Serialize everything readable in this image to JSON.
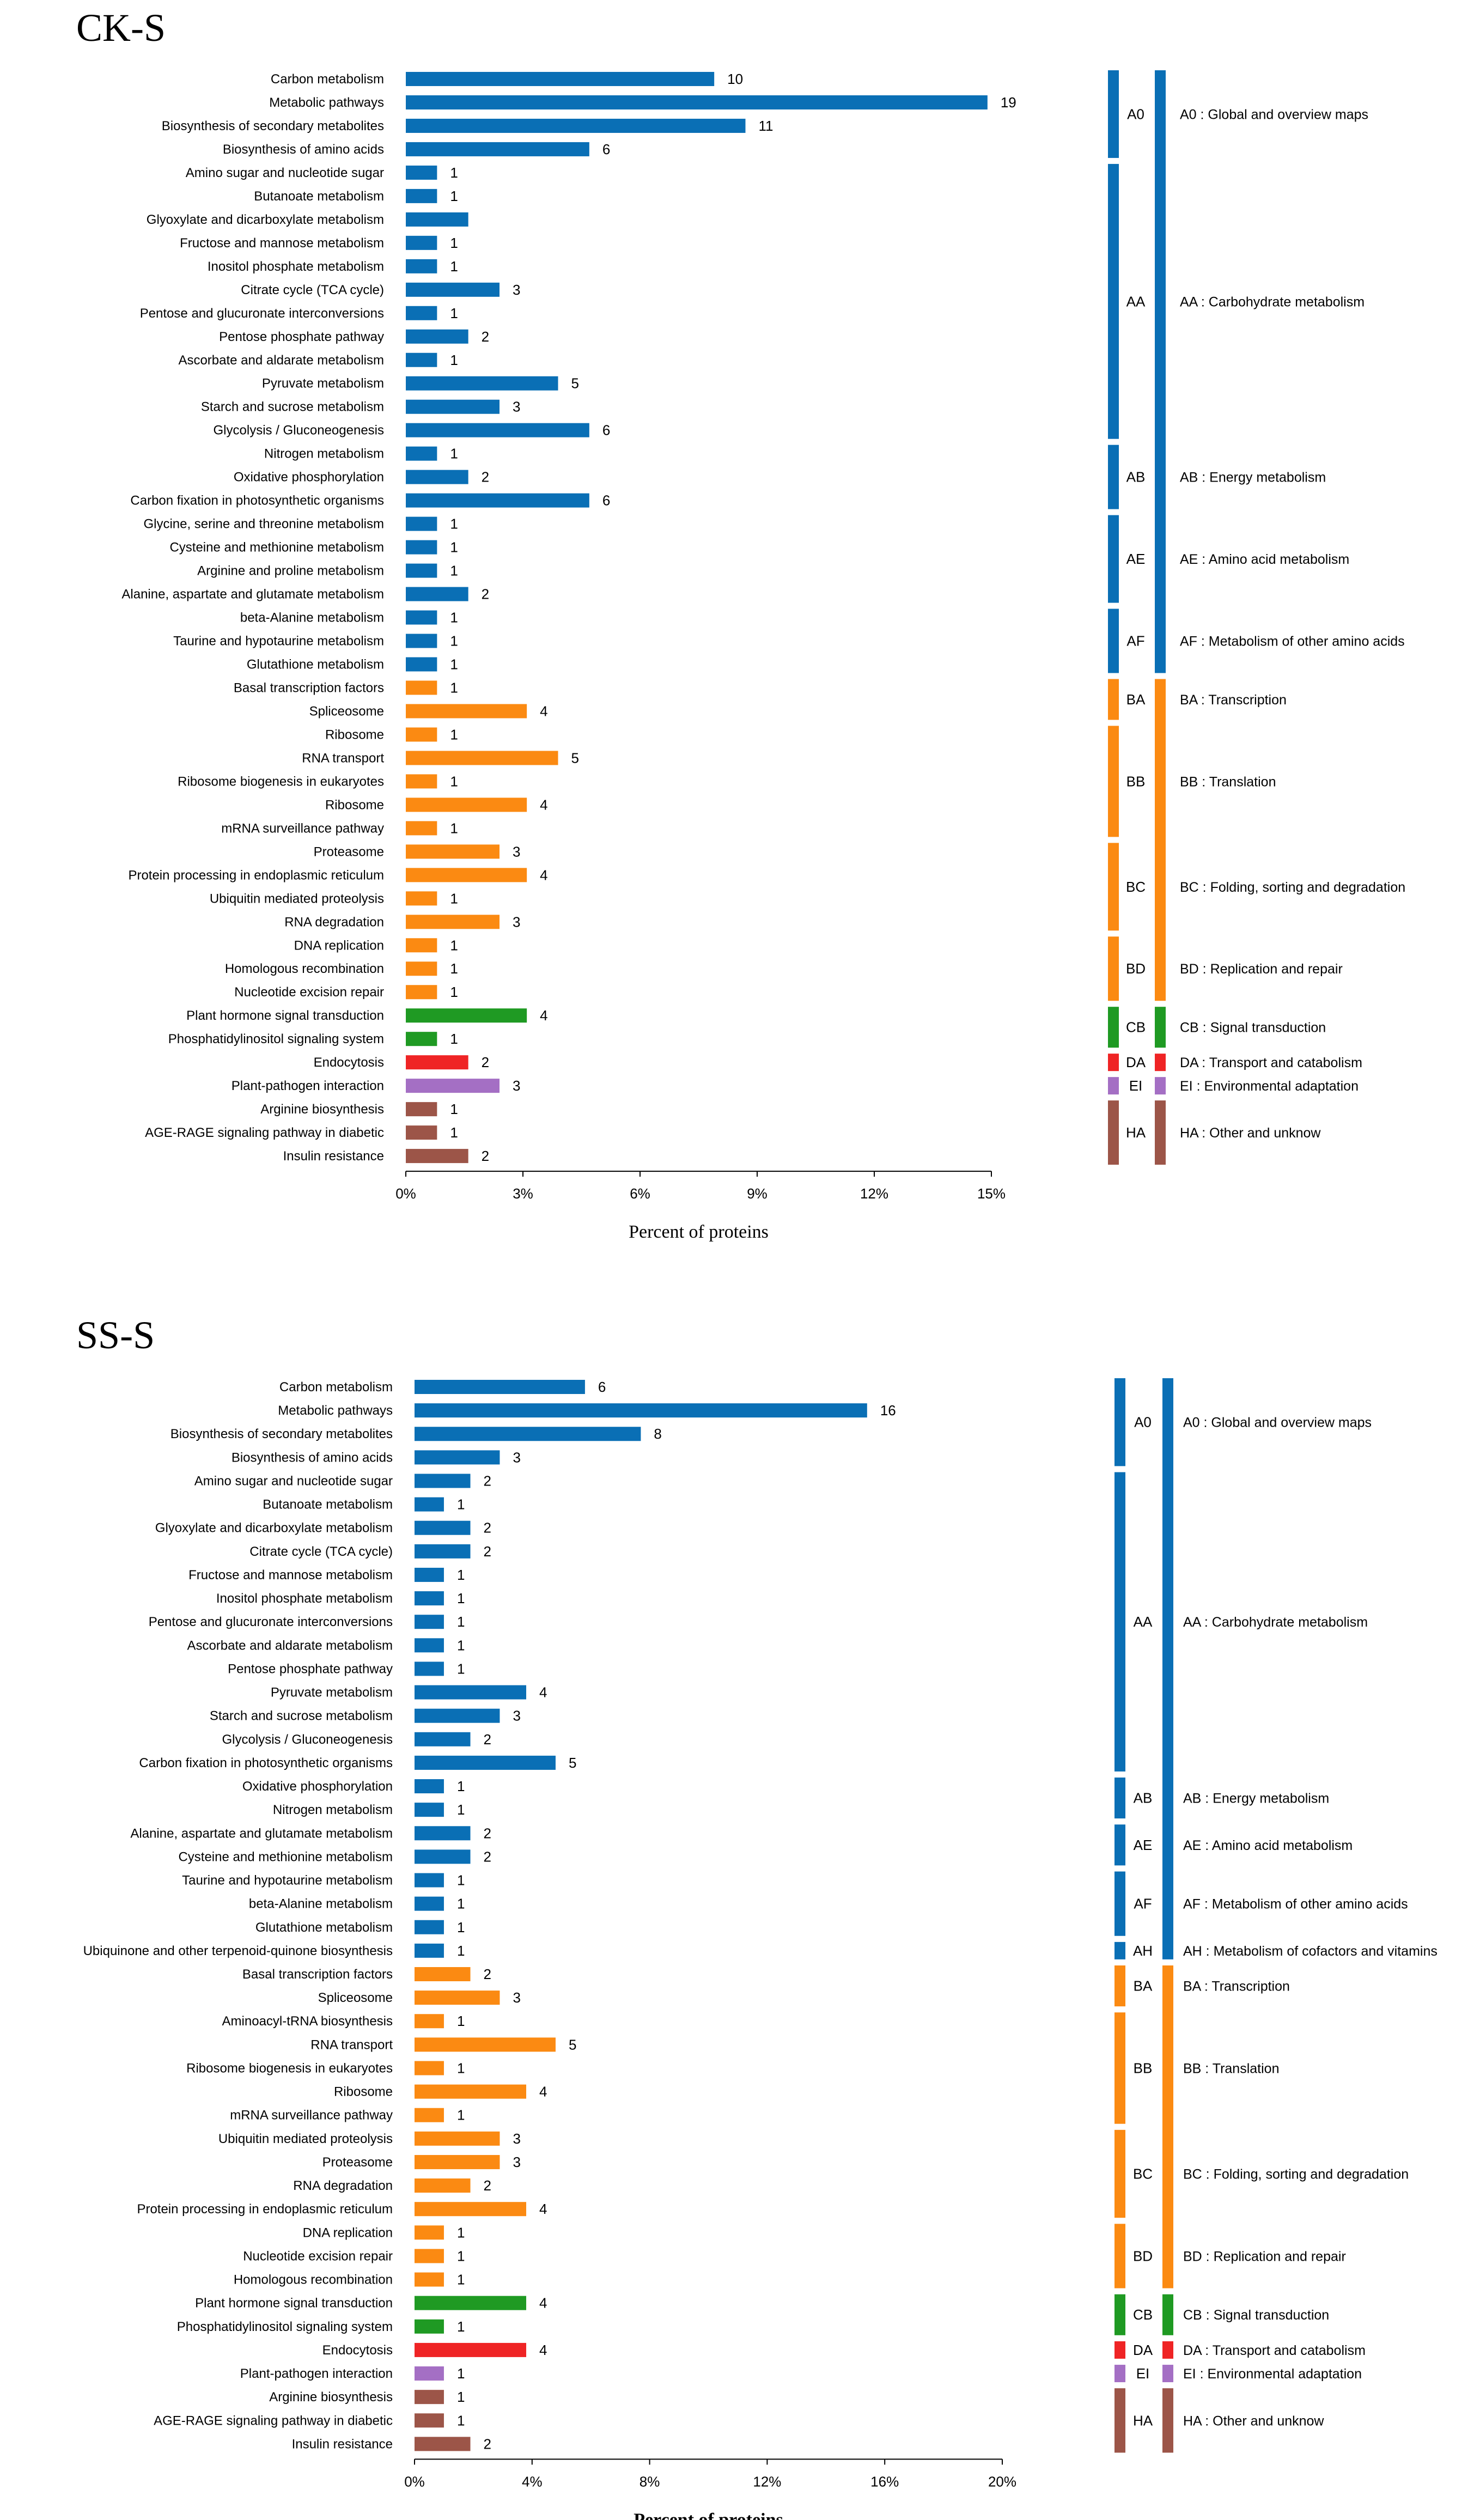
{
  "colors": {
    "blue": "#0a6fb5",
    "orange": "#fb8a12",
    "green": "#1f9a23",
    "red": "#ef2425",
    "purple": "#a46fc4",
    "brown": "#9c5548"
  },
  "chart_data": [
    {
      "type": "bar",
      "orientation": "horizontal",
      "title": "CK-S",
      "xlabel": "Percent of proteins",
      "xlim": [
        0,
        15
      ],
      "xticks": [
        "0%",
        "3%",
        "6%",
        "9%",
        "12%",
        "15%"
      ],
      "categories": [
        "Carbon metabolism",
        "Metabolic pathways",
        "Biosynthesis of secondary metabolites",
        "Biosynthesis of amino acids",
        "Amino sugar and nucleotide sugar",
        "Butanoate metabolism",
        "Glyoxylate and dicarboxylate metabolism",
        "Fructose and mannose metabolism",
        "Inositol phosphate metabolism",
        "Citrate cycle (TCA cycle)",
        "Pentose and glucuronate interconversions",
        "Pentose phosphate pathway",
        "Ascorbate and aldarate metabolism",
        "Pyruvate metabolism",
        "Starch and sucrose metabolism",
        "Glycolysis / Gluconeogenesis",
        "Nitrogen metabolism",
        "Oxidative phosphorylation",
        "Carbon fixation in photosynthetic organisms",
        "Glycine, serine and threonine metabolism",
        "Cysteine and methionine metabolism",
        "Arginine and proline metabolism",
        "Alanine, aspartate and glutamate metabolism",
        "beta-Alanine metabolism",
        "Taurine and hypotaurine metabolism",
        "Glutathione metabolism",
        "Basal transcription factors",
        "Spliceosome",
        "Ribosome",
        "RNA transport",
        "Ribosome biogenesis in eukaryotes",
        "Ribosome",
        "mRNA surveillance pathway",
        "Proteasome",
        "Protein processing in endoplasmic reticulum",
        "Ubiquitin mediated proteolysis",
        "RNA degradation",
        "DNA replication",
        "Homologous recombination",
        "Nucleotide excision repair",
        "Plant hormone signal transduction",
        "Phosphatidylinositol signaling system",
        "Endocytosis",
        "Plant-pathogen interaction",
        "Arginine biosynthesis",
        "AGE-RAGE signaling pathway in diabetic",
        "Insulin resistance"
      ],
      "values": [
        7.9,
        14.9,
        8.7,
        4.7,
        0.8,
        0.8,
        1.6,
        0.8,
        0.8,
        2.4,
        0.8,
        1.6,
        0.8,
        3.9,
        2.4,
        4.7,
        0.8,
        1.6,
        4.7,
        0.8,
        0.8,
        0.8,
        1.6,
        0.8,
        0.8,
        0.8,
        0.8,
        3.1,
        0.8,
        3.9,
        0.8,
        3.1,
        0.8,
        2.4,
        3.1,
        0.8,
        2.4,
        0.8,
        0.8,
        0.8,
        3.1,
        0.8,
        1.6,
        2.4,
        0.8,
        0.8,
        1.6
      ],
      "counts": [
        "10",
        "19",
        "11",
        "6",
        "1",
        "1",
        "",
        "1",
        "1",
        "3",
        "1",
        "2",
        "1",
        "5",
        "3",
        "6",
        "1",
        "2",
        "6",
        "1",
        "1",
        "1",
        "2",
        "1",
        "1",
        "1",
        "1",
        "4",
        "1",
        "5",
        "1",
        "4",
        "1",
        "3",
        "4",
        "1",
        "3",
        "1",
        "1",
        "1",
        "4",
        "1",
        "2",
        "3",
        "1",
        "1",
        "2"
      ],
      "color_keys": [
        "blue",
        "blue",
        "blue",
        "blue",
        "blue",
        "blue",
        "blue",
        "blue",
        "blue",
        "blue",
        "blue",
        "blue",
        "blue",
        "blue",
        "blue",
        "blue",
        "blue",
        "blue",
        "blue",
        "blue",
        "blue",
        "blue",
        "blue",
        "blue",
        "blue",
        "blue",
        "orange",
        "orange",
        "orange",
        "orange",
        "orange",
        "orange",
        "orange",
        "orange",
        "orange",
        "orange",
        "orange",
        "orange",
        "orange",
        "orange",
        "green",
        "green",
        "red",
        "purple",
        "brown",
        "brown",
        "brown"
      ],
      "groups": [
        {
          "code": "A0",
          "label": "A0 : Global and overview maps",
          "start": 0,
          "end": 3,
          "color_key": "blue"
        },
        {
          "code": "AA",
          "label": "AA : Carbohydrate metabolism",
          "start": 4,
          "end": 15,
          "color_key": "blue"
        },
        {
          "code": "AB",
          "label": "AB : Energy metabolism",
          "start": 16,
          "end": 18,
          "color_key": "blue"
        },
        {
          "code": "AE",
          "label": "AE : Amino acid metabolism",
          "start": 19,
          "end": 22,
          "color_key": "blue"
        },
        {
          "code": "AF",
          "label": "AF : Metabolism of other amino acids",
          "start": 23,
          "end": 25,
          "color_key": "blue"
        },
        {
          "code": "BA",
          "label": "BA : Transcription",
          "start": 26,
          "end": 27,
          "color_key": "orange"
        },
        {
          "code": "BB",
          "label": "BB : Translation",
          "start": 28,
          "end": 32,
          "color_key": "orange"
        },
        {
          "code": "BC",
          "label": "BC : Folding, sorting and degradation",
          "start": 33,
          "end": 36,
          "color_key": "orange"
        },
        {
          "code": "BD",
          "label": "BD : Replication and repair",
          "start": 37,
          "end": 39,
          "color_key": "orange"
        },
        {
          "code": "CB",
          "label": "CB : Signal transduction",
          "start": 40,
          "end": 41,
          "color_key": "green"
        },
        {
          "code": "DA",
          "label": "DA : Transport and catabolism",
          "start": 42,
          "end": 42,
          "color_key": "red"
        },
        {
          "code": "EI",
          "label": "EI : Environmental adaptation",
          "start": 43,
          "end": 43,
          "color_key": "purple"
        },
        {
          "code": "HA",
          "label": "HA : Other and unknow",
          "start": 44,
          "end": 46,
          "color_key": "brown"
        }
      ]
    },
    {
      "type": "bar",
      "orientation": "horizontal",
      "title": "SS-S",
      "xlabel": "Percent of proteins",
      "xlim": [
        0,
        20
      ],
      "xticks": [
        "0%",
        "4%",
        "8%",
        "12%",
        "16%",
        "20%"
      ],
      "categories": [
        "Carbon metabolism",
        "Metabolic pathways",
        "Biosynthesis of secondary metabolites",
        "Biosynthesis of amino acids",
        "Amino sugar and nucleotide sugar",
        "Butanoate metabolism",
        "Glyoxylate and dicarboxylate metabolism",
        "Citrate cycle (TCA cycle)",
        "Fructose and mannose metabolism",
        "Inositol phosphate metabolism",
        "Pentose and glucuronate interconversions",
        "Ascorbate and aldarate metabolism",
        "Pentose phosphate pathway",
        "Pyruvate metabolism",
        "Starch and sucrose metabolism",
        "Glycolysis / Gluconeogenesis",
        "Carbon fixation in photosynthetic organisms",
        "Oxidative phosphorylation",
        "Nitrogen metabolism",
        "Alanine, aspartate and glutamate metabolism",
        "Cysteine and methionine metabolism",
        "Taurine and hypotaurine metabolism",
        "beta-Alanine metabolism",
        "Glutathione metabolism",
        "Ubiquinone and other terpenoid-quinone biosynthesis",
        "Basal transcription factors",
        "Spliceosome",
        "Aminoacyl-tRNA biosynthesis",
        "RNA transport",
        "Ribosome biogenesis in eukaryotes",
        "Ribosome",
        "mRNA surveillance pathway",
        "Ubiquitin mediated proteolysis",
        "Proteasome",
        "RNA degradation",
        "Protein processing in endoplasmic reticulum",
        "DNA replication",
        "Nucleotide excision repair",
        "Homologous recombination",
        "Plant hormone signal transduction",
        "Phosphatidylinositol signaling system",
        "Endocytosis",
        "Plant-pathogen interaction",
        "Arginine biosynthesis",
        "AGE-RAGE signaling pathway in diabetic",
        "Insulin resistance"
      ],
      "values": [
        5.8,
        15.4,
        7.7,
        2.9,
        1.9,
        1.0,
        1.9,
        1.9,
        1.0,
        1.0,
        1.0,
        1.0,
        1.0,
        3.8,
        2.9,
        1.9,
        4.8,
        1.0,
        1.0,
        1.9,
        1.9,
        1.0,
        1.0,
        1.0,
        1.0,
        1.9,
        2.9,
        1.0,
        4.8,
        1.0,
        3.8,
        1.0,
        2.9,
        2.9,
        1.9,
        3.8,
        1.0,
        1.0,
        1.0,
        3.8,
        1.0,
        3.8,
        1.0,
        1.0,
        1.0,
        1.9
      ],
      "counts": [
        "6",
        "16",
        "8",
        "3",
        "2",
        "1",
        "2",
        "2",
        "1",
        "1",
        "1",
        "1",
        "1",
        "4",
        "3",
        "2",
        "5",
        "1",
        "1",
        "2",
        "2",
        "1",
        "1",
        "1",
        "1",
        "2",
        "3",
        "1",
        "5",
        "1",
        "4",
        "1",
        "3",
        "3",
        "2",
        "4",
        "1",
        "1",
        "1",
        "4",
        "1",
        "4",
        "1",
        "1",
        "1",
        "2"
      ],
      "color_keys": [
        "blue",
        "blue",
        "blue",
        "blue",
        "blue",
        "blue",
        "blue",
        "blue",
        "blue",
        "blue",
        "blue",
        "blue",
        "blue",
        "blue",
        "blue",
        "blue",
        "blue",
        "blue",
        "blue",
        "blue",
        "blue",
        "blue",
        "blue",
        "blue",
        "blue",
        "orange",
        "orange",
        "orange",
        "orange",
        "orange",
        "orange",
        "orange",
        "orange",
        "orange",
        "orange",
        "orange",
        "orange",
        "orange",
        "orange",
        "green",
        "green",
        "red",
        "purple",
        "brown",
        "brown",
        "brown"
      ],
      "groups": [
        {
          "code": "A0",
          "label": "A0 : Global and overview maps",
          "start": 0,
          "end": 3,
          "color_key": "blue"
        },
        {
          "code": "AA",
          "label": "AA : Carbohydrate metabolism",
          "start": 4,
          "end": 16,
          "color_key": "blue"
        },
        {
          "code": "AB",
          "label": "AB : Energy metabolism",
          "start": 17,
          "end": 18,
          "color_key": "blue"
        },
        {
          "code": "AE",
          "label": "AE : Amino acid metabolism",
          "start": 19,
          "end": 20,
          "color_key": "blue"
        },
        {
          "code": "AF",
          "label": "AF : Metabolism of other amino acids",
          "start": 21,
          "end": 23,
          "color_key": "blue"
        },
        {
          "code": "AH",
          "label": "AH : Metabolism of cofactors and vitamins",
          "start": 24,
          "end": 24,
          "color_key": "blue"
        },
        {
          "code": "BA",
          "label": "BA : Transcription",
          "start": 25,
          "end": 26,
          "color_key": "orange"
        },
        {
          "code": "BB",
          "label": "BB : Translation",
          "start": 27,
          "end": 31,
          "color_key": "orange"
        },
        {
          "code": "BC",
          "label": "BC : Folding, sorting and degradation",
          "start": 32,
          "end": 35,
          "color_key": "orange"
        },
        {
          "code": "BD",
          "label": "BD : Replication and repair",
          "start": 36,
          "end": 38,
          "color_key": "orange"
        },
        {
          "code": "CB",
          "label": "CB : Signal transduction",
          "start": 39,
          "end": 40,
          "color_key": "green"
        },
        {
          "code": "DA",
          "label": "DA : Transport and catabolism",
          "start": 41,
          "end": 41,
          "color_key": "red"
        },
        {
          "code": "EI",
          "label": "EI : Environmental adaptation",
          "start": 42,
          "end": 42,
          "color_key": "purple"
        },
        {
          "code": "HA",
          "label": "HA : Other and unknow",
          "start": 43,
          "end": 45,
          "color_key": "brown"
        }
      ]
    }
  ]
}
